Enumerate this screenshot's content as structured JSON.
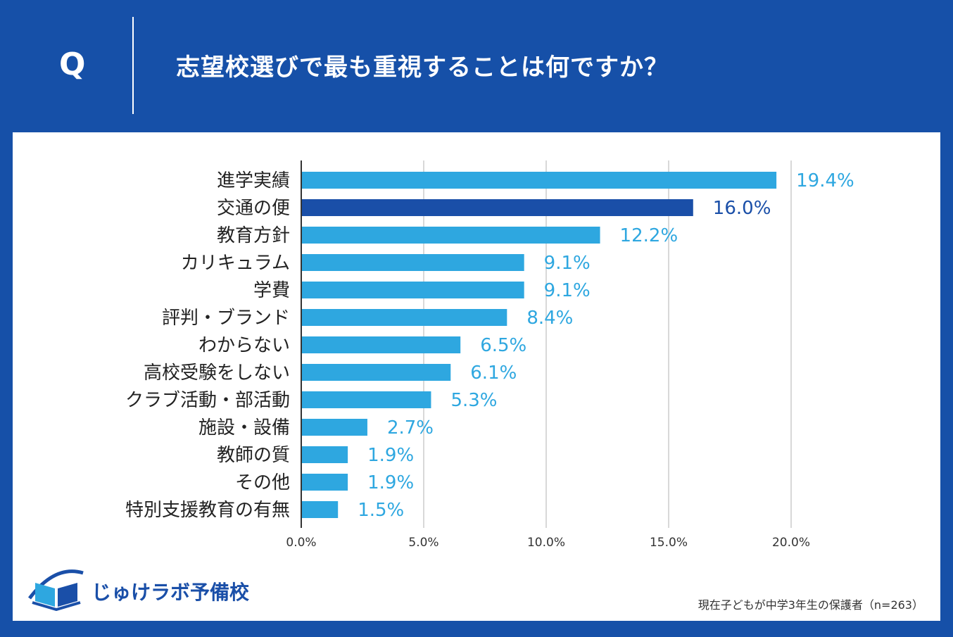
{
  "header": {
    "q_letter": "Q",
    "question": "志望校選びで最も重視することは何ですか？"
  },
  "colors": {
    "background": "#1650a8",
    "bar_default": "#2ea7e0",
    "bar_highlight": "#1a4fa8",
    "panel": "#ffffff"
  },
  "chart_data": {
    "type": "bar",
    "orientation": "horizontal",
    "categories": [
      "進学実績",
      "交通の便",
      "教育方針",
      "カリキュラム",
      "学費",
      "評判・ブランド",
      "わからない",
      "高校受験をしない",
      "クラブ活動・部活動",
      "施設・設備",
      "教師の質",
      "その他",
      "特別支援教育の有無"
    ],
    "values": [
      19.4,
      16.0,
      12.2,
      9.1,
      9.1,
      8.4,
      6.5,
      6.1,
      5.3,
      2.7,
      1.9,
      1.9,
      1.5
    ],
    "value_labels": [
      "19.4%",
      "16.0%",
      "12.2%",
      "9.1%",
      "9.1%",
      "8.4%",
      "6.5%",
      "6.1%",
      "5.3%",
      "2.7%",
      "1.9%",
      "1.9%",
      "1.5%"
    ],
    "highlight_index": 1,
    "xlim": [
      0,
      20
    ],
    "ticks": [
      0,
      5,
      10,
      15,
      20
    ],
    "tick_labels": [
      "0.0%",
      "5.0%",
      "10.0%",
      "15.0%",
      "20.0%"
    ],
    "grid": true,
    "title": "",
    "xlabel": "",
    "ylabel": ""
  },
  "logo": {
    "text": "じゅけラボ予備校",
    "icon": "open-book-icon"
  },
  "footnote": "現在子どもが中学3年生の保護者（n=263）"
}
